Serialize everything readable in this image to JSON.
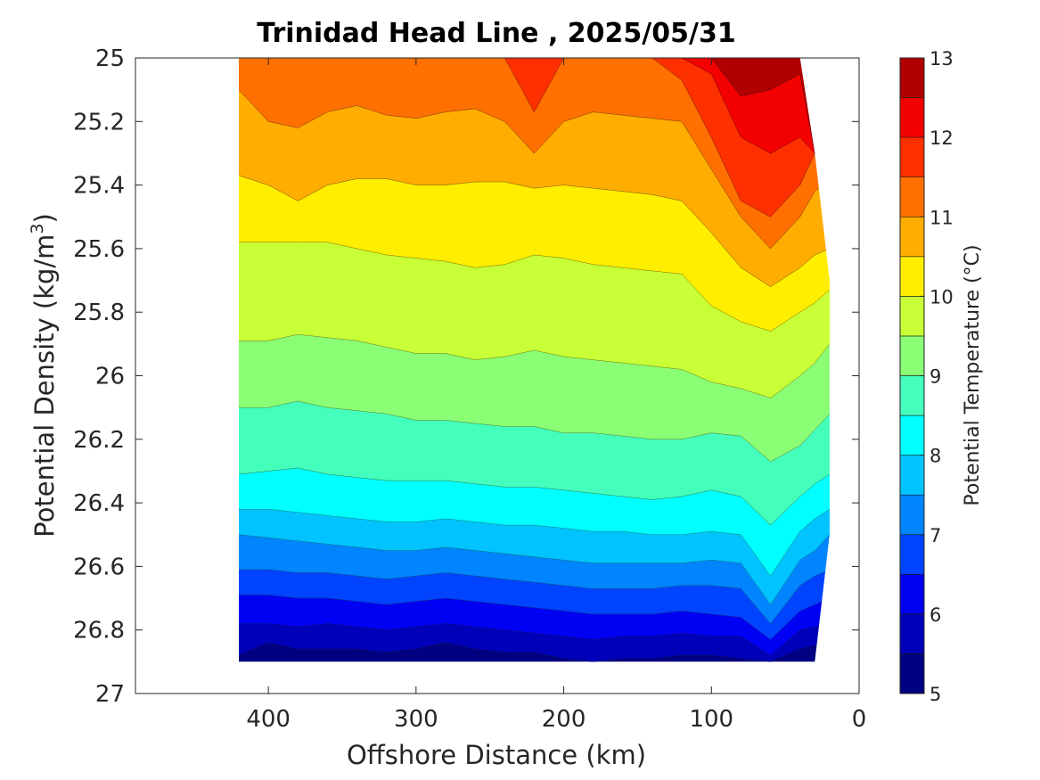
{
  "chart_data": {
    "type": "contour",
    "title": "Trinidad Head Line , 2025/05/31",
    "xlabel": "Offshore Distance (km)",
    "ylabel_main": "Potential Density (kg/m",
    "ylabel_sup": "3",
    "ylabel_end": ")",
    "colorbar_label": "Potential Temperature (°C)",
    "x_reversed": true,
    "y_reversed": true,
    "xlim": [
      490,
      0
    ],
    "ylim": [
      25,
      27
    ],
    "x_ticks": [
      400,
      300,
      200,
      100,
      0
    ],
    "x_tick_labels": [
      "400",
      "300",
      "200",
      "100",
      "0"
    ],
    "y_ticks": [
      25,
      25.2,
      25.4,
      25.6,
      25.8,
      26,
      26.2,
      26.4,
      26.6,
      26.8,
      27
    ],
    "y_tick_labels": [
      "25",
      "25.2",
      "25.4",
      "25.6",
      "25.8",
      "26",
      "26.2",
      "26.4",
      "26.6",
      "26.8",
      "27"
    ],
    "colorbar_ticks": [
      5,
      6,
      7,
      8,
      9,
      10,
      11,
      12,
      13
    ],
    "colorbar_tick_labels": [
      "5",
      "6",
      "7",
      "8",
      "9",
      "10",
      "11",
      "12",
      "13"
    ],
    "color_levels": [
      5,
      5.5,
      6,
      6.5,
      7,
      7.5,
      8,
      8.5,
      9,
      9.5,
      10,
      10.5,
      11,
      11.5,
      12,
      12.5,
      13
    ],
    "level_colors": [
      "#000080",
      "#0000b9",
      "#0000f3",
      "#0044ff",
      "#0085ff",
      "#00c3ff",
      "#00ffff",
      "#44ffbb",
      "#8aff75",
      "#c8ff36",
      "#ffee00",
      "#ffad00",
      "#ff7000",
      "#ff3000",
      "#f30000",
      "#b00000"
    ],
    "data_extent": {
      "x": [
        420,
        20
      ],
      "y_min": 25,
      "y_max_offshore": 26.9
    },
    "x": [
      420,
      400,
      380,
      360,
      340,
      320,
      300,
      280,
      260,
      240,
      220,
      200,
      180,
      160,
      140,
      120,
      100,
      80,
      60,
      40,
      30,
      20
    ],
    "bottom_density": [
      26.9,
      26.9,
      26.9,
      26.9,
      26.9,
      26.9,
      26.9,
      26.9,
      26.9,
      26.9,
      26.9,
      26.9,
      26.9,
      26.9,
      26.9,
      26.9,
      26.9,
      26.9,
      26.9,
      26.9,
      26.9,
      26.5
    ],
    "top_density": [
      25,
      25,
      25,
      25,
      25,
      25,
      25,
      25,
      25,
      25,
      25,
      25,
      25,
      25,
      25,
      25,
      25,
      25,
      25,
      25,
      25.3,
      25.7
    ],
    "isotherms": [
      {
        "level": 5.5,
        "y": [
          26.88,
          26.84,
          26.86,
          26.86,
          26.86,
          26.87,
          26.86,
          26.84,
          26.86,
          26.87,
          26.87,
          26.89,
          26.9,
          26.89,
          26.89,
          26.88,
          26.88,
          26.89,
          26.9,
          26.86,
          26.85,
          26.84
        ]
      },
      {
        "level": 6.0,
        "y": [
          26.78,
          26.78,
          26.79,
          26.78,
          26.79,
          26.8,
          26.79,
          26.78,
          26.79,
          26.8,
          26.81,
          26.82,
          26.83,
          26.82,
          26.82,
          26.81,
          26.82,
          26.82,
          26.88,
          26.8,
          26.79,
          26.78
        ]
      },
      {
        "level": 6.5,
        "y": [
          26.69,
          26.69,
          26.7,
          26.7,
          26.71,
          26.72,
          26.71,
          26.7,
          26.71,
          26.72,
          26.73,
          26.74,
          26.75,
          26.75,
          26.75,
          26.74,
          26.75,
          26.76,
          26.83,
          26.74,
          26.72,
          26.7
        ]
      },
      {
        "level": 7.0,
        "y": [
          26.61,
          26.61,
          26.62,
          26.62,
          26.63,
          26.64,
          26.63,
          26.62,
          26.63,
          26.64,
          26.65,
          26.66,
          26.67,
          26.67,
          26.67,
          26.66,
          26.66,
          26.67,
          26.78,
          26.66,
          26.63,
          26.61
        ]
      },
      {
        "level": 7.5,
        "y": [
          26.5,
          26.51,
          26.52,
          26.53,
          26.54,
          26.55,
          26.55,
          26.54,
          26.55,
          26.56,
          26.57,
          26.58,
          26.59,
          26.59,
          26.59,
          26.59,
          26.58,
          26.59,
          26.72,
          26.58,
          26.55,
          26.5
        ]
      },
      {
        "level": 8.0,
        "y": [
          26.42,
          26.42,
          26.43,
          26.44,
          26.45,
          26.46,
          26.46,
          26.45,
          26.46,
          26.47,
          26.47,
          26.48,
          26.49,
          26.49,
          26.5,
          26.5,
          26.49,
          26.5,
          26.63,
          26.49,
          26.45,
          26.42
        ]
      },
      {
        "level": 8.5,
        "y": [
          26.31,
          26.3,
          26.29,
          26.31,
          26.32,
          26.33,
          26.33,
          26.33,
          26.34,
          26.35,
          26.35,
          26.36,
          26.37,
          26.38,
          26.39,
          26.38,
          26.36,
          26.38,
          26.47,
          26.38,
          26.34,
          26.31
        ]
      },
      {
        "level": 9.0,
        "y": [
          26.1,
          26.1,
          26.08,
          26.1,
          26.11,
          26.12,
          26.14,
          26.14,
          26.15,
          26.16,
          26.16,
          26.18,
          26.18,
          26.19,
          26.2,
          26.2,
          26.18,
          26.19,
          26.27,
          26.22,
          26.17,
          26.12
        ]
      },
      {
        "level": 9.5,
        "y": [
          25.89,
          25.89,
          25.87,
          25.88,
          25.89,
          25.91,
          25.93,
          25.93,
          25.95,
          25.94,
          25.92,
          25.94,
          25.95,
          25.96,
          25.97,
          25.98,
          26.02,
          26.04,
          26.07,
          26.0,
          25.96,
          25.9
        ]
      },
      {
        "level": 10.0,
        "y": [
          25.58,
          25.58,
          25.58,
          25.58,
          25.6,
          25.62,
          25.63,
          25.64,
          25.66,
          25.65,
          25.62,
          25.63,
          25.65,
          25.66,
          25.67,
          25.68,
          25.78,
          25.83,
          25.86,
          25.8,
          25.77,
          25.73
        ]
      },
      {
        "level": 10.5,
        "y": [
          25.37,
          25.4,
          25.45,
          25.4,
          25.38,
          25.38,
          25.4,
          25.4,
          25.39,
          25.39,
          25.41,
          25.4,
          25.41,
          25.42,
          25.43,
          25.45,
          25.55,
          25.66,
          25.72,
          25.66,
          25.62,
          25.6
        ]
      },
      {
        "level": 11.0,
        "y": [
          25.1,
          25.2,
          25.22,
          25.17,
          25.15,
          25.18,
          25.19,
          25.17,
          25.16,
          25.2,
          25.3,
          25.2,
          25.17,
          25.18,
          25.19,
          25.2,
          25.35,
          25.5,
          25.6,
          25.5,
          25.42,
          25.38
        ]
      },
      {
        "level": 11.5,
        "y": [
          25.0,
          25.0,
          25.0,
          25.0,
          25.0,
          25.0,
          25.0,
          25.0,
          25.0,
          25.0,
          25.17,
          25.0,
          25.0,
          25.0,
          25.0,
          25.07,
          25.25,
          25.45,
          25.5,
          25.4,
          25.3,
          25.3
        ]
      },
      {
        "level": 12.0,
        "y": [
          25.0,
          25.0,
          25.0,
          25.0,
          25.0,
          25.0,
          25.0,
          25.0,
          25.0,
          25.0,
          25.0,
          25.0,
          25.0,
          25.0,
          25.0,
          25.0,
          25.05,
          25.25,
          25.3,
          25.25,
          25.3,
          25.3
        ]
      },
      {
        "level": 12.5,
        "y": [
          25.0,
          25.0,
          25.0,
          25.0,
          25.0,
          25.0,
          25.0,
          25.0,
          25.0,
          25.0,
          25.0,
          25.0,
          25.0,
          25.0,
          25.0,
          25.0,
          25.0,
          25.12,
          25.1,
          25.05,
          25.3,
          25.3
        ]
      }
    ]
  }
}
